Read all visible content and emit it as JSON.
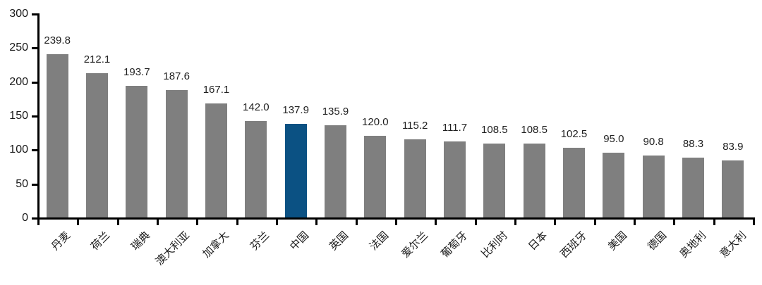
{
  "chart_data": {
    "type": "bar",
    "title": "",
    "xlabel": "",
    "ylabel": "",
    "categories": [
      "丹麦",
      "荷兰",
      "瑞典",
      "澳大利亚",
      "加拿大",
      "芬兰",
      "中国",
      "英国",
      "法国",
      "爱尔兰",
      "葡萄牙",
      "比利时",
      "日本",
      "西班牙",
      "美国",
      "德国",
      "奥地利",
      "意大利"
    ],
    "values": [
      239.8,
      212.1,
      193.7,
      187.6,
      167.1,
      142.0,
      137.9,
      135.9,
      120.0,
      115.2,
      111.7,
      108.5,
      108.5,
      102.5,
      95.0,
      90.8,
      88.3,
      83.9
    ],
    "value_labels": [
      "239.8",
      "212.1",
      "193.7",
      "187.6",
      "167.1",
      "142.0",
      "137.9",
      "135.9",
      "120.0",
      "115.2",
      "111.7",
      "108.5",
      "108.5",
      "102.5",
      "95.0",
      "90.8",
      "88.3",
      "83.9"
    ],
    "highlight_category": "中国",
    "highlight_index": 6,
    "ylim": [
      0,
      300
    ],
    "yticks": [
      0,
      50,
      100,
      150,
      200,
      250,
      300
    ],
    "ytick_labels": [
      "0",
      "50",
      "100",
      "150",
      "200",
      "250",
      "300"
    ],
    "grid": false,
    "legend": "none",
    "colors": {
      "bar": "#7F7F7F",
      "highlight": "#0B5183",
      "axis": "#000000",
      "text": "#1A1A1A"
    }
  }
}
